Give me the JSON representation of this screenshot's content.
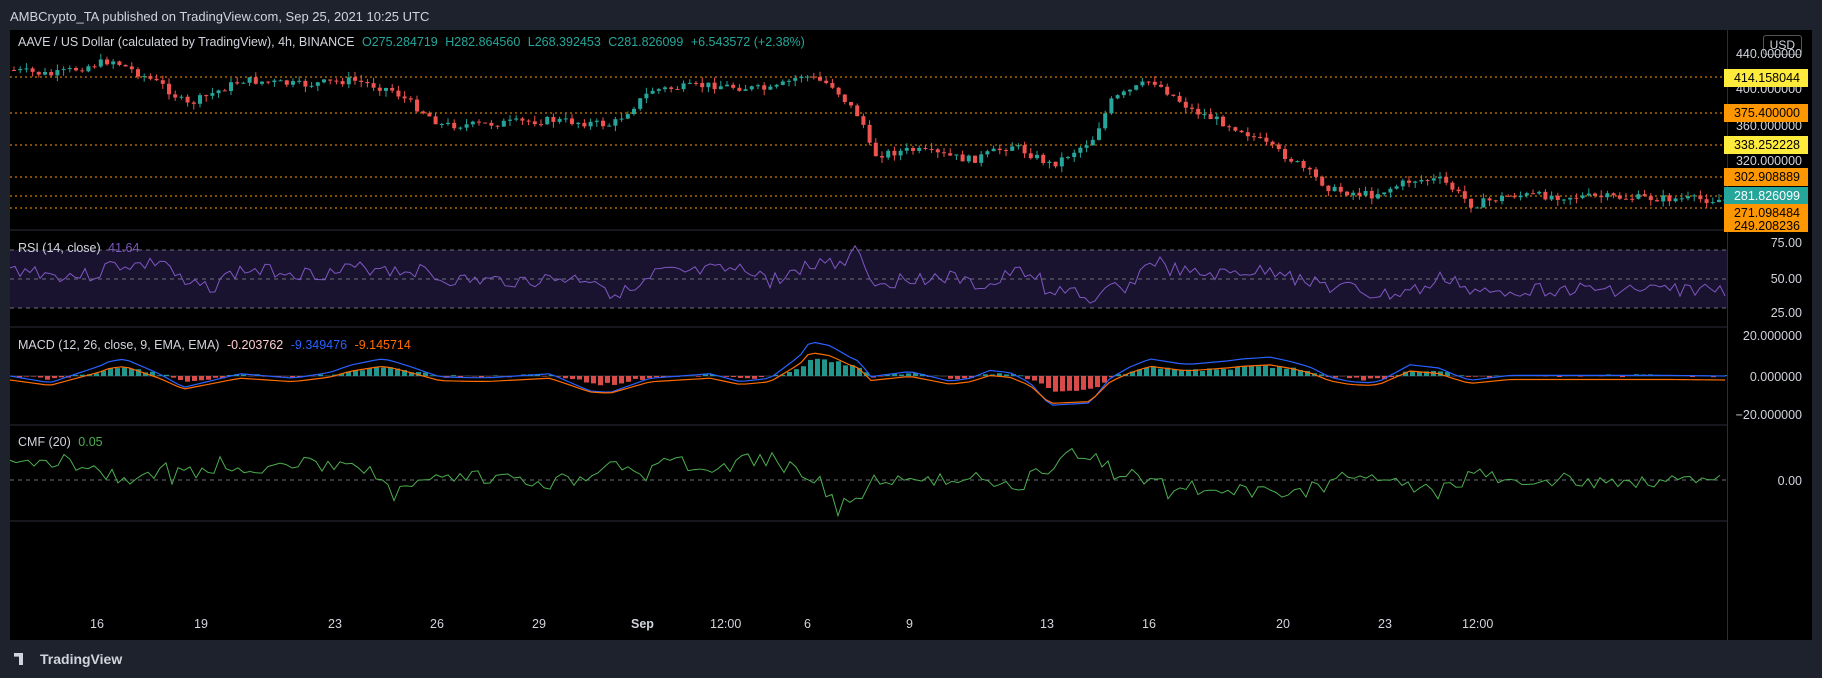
{
  "header": {
    "published": "AMBCrypto_TA published on TradingView.com, Sep 25, 2021 10:25 UTC"
  },
  "main_legend": {
    "symbol": "AAVE / US Dollar (calculated by TradingView), 4h, BINANCE",
    "open": "O275.284719",
    "high": "H282.864560",
    "low": "L268.392453",
    "close": "C281.826099",
    "change": "+6.543572 (+2.38%)"
  },
  "currency": "USD",
  "price_ticks": [
    "440.000000",
    "400.000000",
    "360.000000",
    "320.000000"
  ],
  "levels": [
    {
      "label": "414.158044",
      "bg": "#ffeb3b",
      "color": "#000"
    },
    {
      "label": "375.400000",
      "bg": "#ff9800",
      "color": "#000"
    },
    {
      "label": "338.252228",
      "bg": "#ffeb3b",
      "color": "#000"
    },
    {
      "label": "302.908889",
      "bg": "#ff9800",
      "color": "#000"
    },
    {
      "label": "281.826099",
      "bg": "#26a69a",
      "color": "#fff"
    },
    {
      "label": "271.098484",
      "bg": "#ff9800",
      "color": "#000"
    },
    {
      "label": "249.208236",
      "bg": "#ff9800",
      "color": "#000"
    }
  ],
  "rsi": {
    "title": "RSI (14, close)",
    "value": "41.64",
    "ticks": [
      "75.00",
      "50.00",
      "25.00"
    ]
  },
  "macd": {
    "title": "MACD (12, 26, close, 9, EMA, EMA)",
    "hist": "-0.203762",
    "macd": "-9.349476",
    "signal": "-9.145714",
    "ticks": [
      "20.000000",
      "0.000000",
      "−20.000000"
    ]
  },
  "cmf": {
    "title": "CMF (20)",
    "value": "0.05",
    "ticks": [
      "0.00"
    ]
  },
  "x_ticks": [
    "16",
    "19",
    "23",
    "26",
    "29",
    "Sep",
    "12:00",
    "6",
    "9",
    "13",
    "16",
    "20",
    "23",
    "12:00"
  ],
  "footer": {
    "brand": "TradingView"
  },
  "colors": {
    "up": "#26a69a",
    "down": "#ef5350",
    "rsi": "#7e57c2",
    "macd": "#2962ff",
    "signal": "#ff6d00",
    "cmf": "#4caf50"
  }
}
